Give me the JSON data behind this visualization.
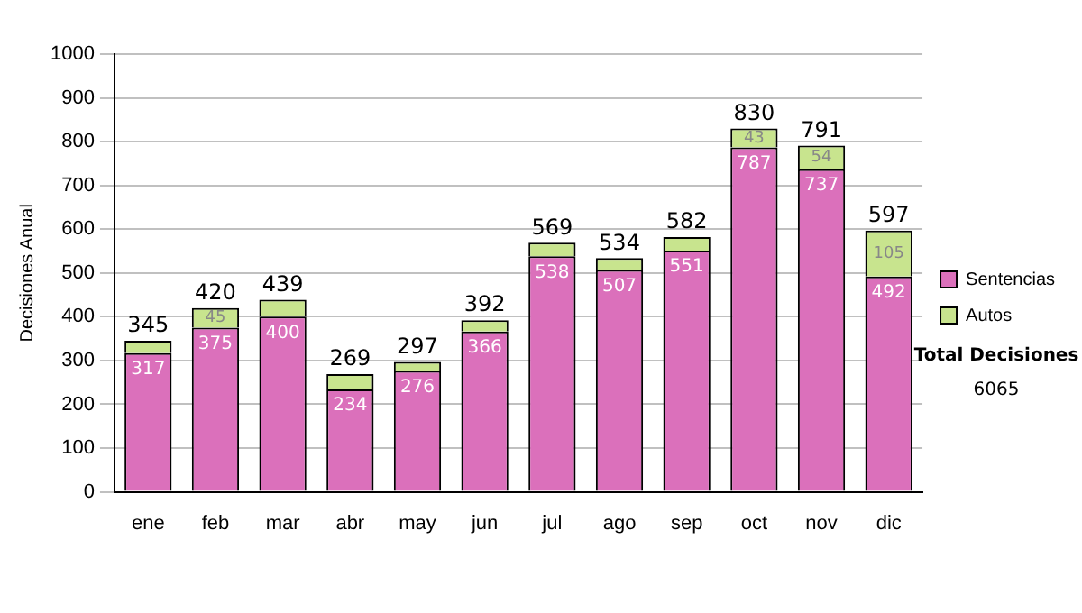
{
  "chart_data": {
    "type": "bar",
    "stacked": true,
    "ylabel": "Decisiones Anual",
    "categories": [
      "ene",
      "feb",
      "mar",
      "abr",
      "may",
      "jun",
      "jul",
      "ago",
      "sep",
      "oct",
      "nov",
      "dic"
    ],
    "series": [
      {
        "name": "Sentencias",
        "color": "#db70bb",
        "values": [
          317,
          375,
          400,
          234,
          276,
          366,
          538,
          507,
          551,
          787,
          737,
          492
        ],
        "value_labels": [
          "317",
          "375",
          "400",
          "234",
          "276",
          "366",
          "538",
          "507",
          "551",
          "787",
          "737",
          "492"
        ]
      },
      {
        "name": "Autos",
        "color": "#c8e48e",
        "values": [
          28,
          45,
          39,
          35,
          21,
          26,
          31,
          27,
          31,
          43,
          54,
          105
        ],
        "value_labels": [
          null,
          "45",
          null,
          null,
          null,
          null,
          null,
          null,
          null,
          "43",
          "54",
          "105"
        ]
      }
    ],
    "totals": [
      "345",
      "420",
      "439",
      "269",
      "297",
      "392",
      "569",
      "534",
      "582",
      "830",
      "791",
      "597"
    ],
    "ylim": [
      0,
      1000
    ],
    "yticks": [
      0,
      100,
      200,
      300,
      400,
      500,
      600,
      700,
      800,
      900,
      1000
    ],
    "grid": "y",
    "legend": "right",
    "annotations": [
      "Total Decisiones",
      "6065"
    ]
  }
}
